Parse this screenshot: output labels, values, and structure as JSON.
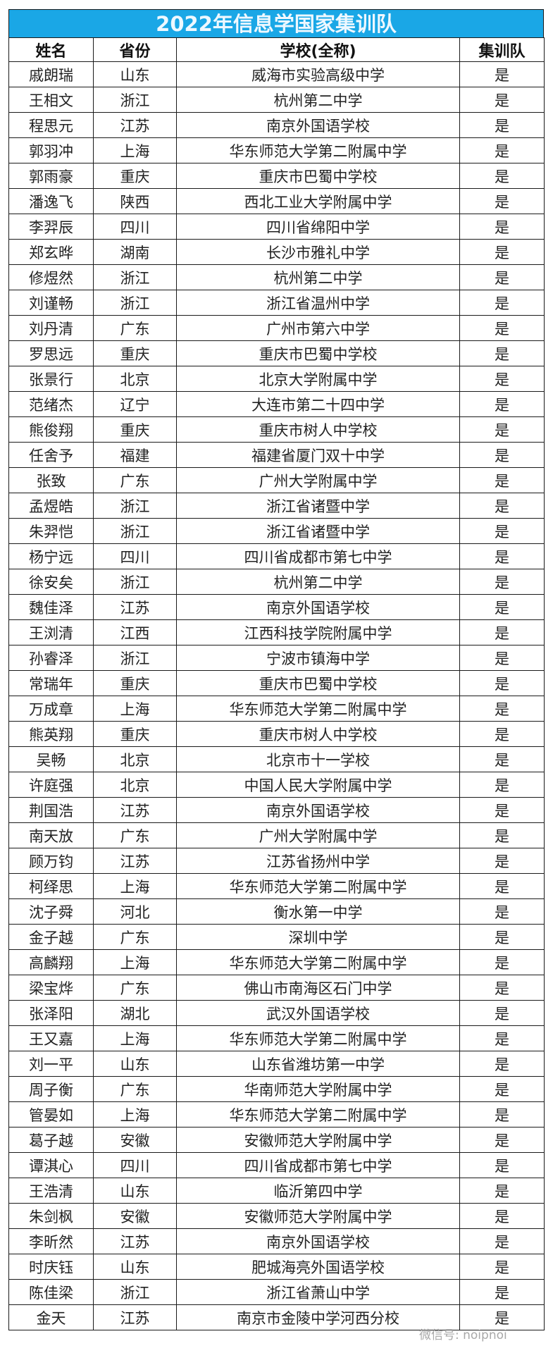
{
  "title": "2022年信息学国家集训队",
  "headers": [
    "姓名",
    "省份",
    "学校(全称)",
    "集训队"
  ],
  "rows": [
    [
      "戚朗瑞",
      "山东",
      "威海市实验高级中学",
      "是"
    ],
    [
      "王相文",
      "浙江",
      "杭州第二中学",
      "是"
    ],
    [
      "程思元",
      "江苏",
      "南京外国语学校",
      "是"
    ],
    [
      "郭羽冲",
      "上海",
      "华东师范大学第二附属中学",
      "是"
    ],
    [
      "郭雨豪",
      "重庆",
      "重庆市巴蜀中学校",
      "是"
    ],
    [
      "潘逸飞",
      "陕西",
      "西北工业大学附属中学",
      "是"
    ],
    [
      "李羿辰",
      "四川",
      "四川省绵阳中学",
      "是"
    ],
    [
      "郑玄晔",
      "湖南",
      "长沙市雅礼中学",
      "是"
    ],
    [
      "修煜然",
      "浙江",
      "杭州第二中学",
      "是"
    ],
    [
      "刘谨畅",
      "浙江",
      "浙江省温州中学",
      "是"
    ],
    [
      "刘丹清",
      "广东",
      "广州市第六中学",
      "是"
    ],
    [
      "罗思远",
      "重庆",
      "重庆市巴蜀中学校",
      "是"
    ],
    [
      "张景行",
      "北京",
      "北京大学附属中学",
      "是"
    ],
    [
      "范绪杰",
      "辽宁",
      "大连市第二十四中学",
      "是"
    ],
    [
      "熊俊翔",
      "重庆",
      "重庆市树人中学校",
      "是"
    ],
    [
      "任舍予",
      "福建",
      "福建省厦门双十中学",
      "是"
    ],
    [
      "张致",
      "广东",
      "广州大学附属中学",
      "是"
    ],
    [
      "孟煜皓",
      "浙江",
      "浙江省诸暨中学",
      "是"
    ],
    [
      "朱羿恺",
      "浙江",
      "浙江省诸暨中学",
      "是"
    ],
    [
      "杨宁远",
      "四川",
      "四川省成都市第七中学",
      "是"
    ],
    [
      "徐安矣",
      "浙江",
      "杭州第二中学",
      "是"
    ],
    [
      "魏佳泽",
      "江苏",
      "南京外国语学校",
      "是"
    ],
    [
      "王浏清",
      "江西",
      "江西科技学院附属中学",
      "是"
    ],
    [
      "孙睿泽",
      "浙江",
      "宁波市镇海中学",
      "是"
    ],
    [
      "常瑞年",
      "重庆",
      "重庆市巴蜀中学校",
      "是"
    ],
    [
      "万成章",
      "上海",
      "华东师范大学第二附属中学",
      "是"
    ],
    [
      "熊英翔",
      "重庆",
      "重庆市树人中学校",
      "是"
    ],
    [
      "吴畅",
      "北京",
      "北京市十一学校",
      "是"
    ],
    [
      "许庭强",
      "北京",
      "中国人民大学附属中学",
      "是"
    ],
    [
      "荆国浩",
      "江苏",
      "南京外国语学校",
      "是"
    ],
    [
      "南天放",
      "广东",
      "广州大学附属中学",
      "是"
    ],
    [
      "顾万钧",
      "江苏",
      "江苏省扬州中学",
      "是"
    ],
    [
      "柯绎思",
      "上海",
      "华东师范大学第二附属中学",
      "是"
    ],
    [
      "沈子舜",
      "河北",
      "衡水第一中学",
      "是"
    ],
    [
      "金子越",
      "广东",
      "深圳中学",
      "是"
    ],
    [
      "高麟翔",
      "上海",
      "华东师范大学第二附属中学",
      "是"
    ],
    [
      "梁宝烨",
      "广东",
      "佛山市南海区石门中学",
      "是"
    ],
    [
      "张泽阳",
      "湖北",
      "武汉外国语学校",
      "是"
    ],
    [
      "王又嘉",
      "上海",
      "华东师范大学第二附属中学",
      "是"
    ],
    [
      "刘一平",
      "山东",
      "山东省潍坊第一中学",
      "是"
    ],
    [
      "周子衡",
      "广东",
      "华南师范大学附属中学",
      "是"
    ],
    [
      "管晏如",
      "上海",
      "华东师范大学第二附属中学",
      "是"
    ],
    [
      "葛子越",
      "安徽",
      "安徽师范大学附属中学",
      "是"
    ],
    [
      "谭淇心",
      "四川",
      "四川省成都市第七中学",
      "是"
    ],
    [
      "王浩清",
      "山东",
      "临沂第四中学",
      "是"
    ],
    [
      "朱剑枫",
      "安徽",
      "安徽师范大学附属中学",
      "是"
    ],
    [
      "李昕然",
      "江苏",
      "南京外国语学校",
      "是"
    ],
    [
      "时庆钰",
      "山东",
      "肥城海亮外国语学校",
      "是"
    ],
    [
      "陈佳梁",
      "浙江",
      "浙江省萧山中学",
      "是"
    ],
    [
      "金天",
      "江苏",
      "南京市金陵中学河西分校",
      "是"
    ]
  ],
  "watermark": "微信号: noipnoi",
  "colors": {
    "title_bg": "#1aa7e6",
    "title_text": "#eef8ff"
  }
}
